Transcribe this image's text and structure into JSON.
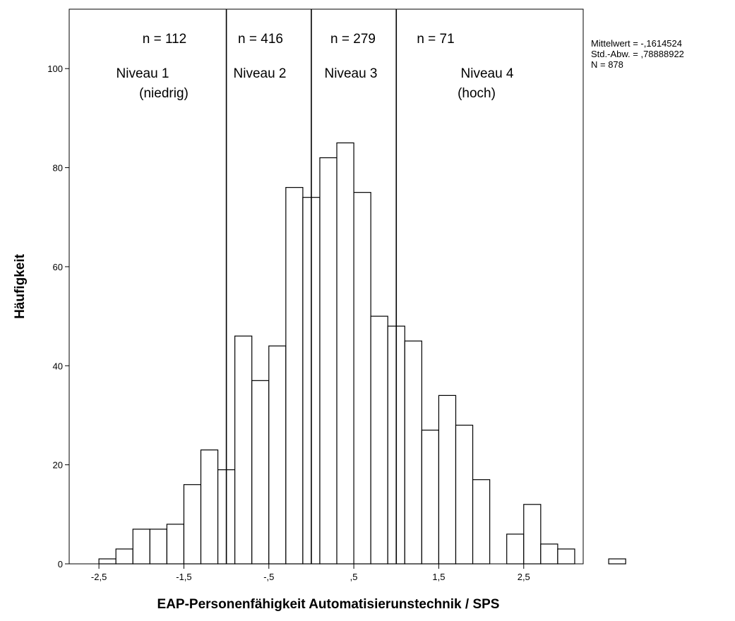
{
  "chart_data": {
    "type": "bar",
    "title": "",
    "xlabel": "EAP-Personenfähigkeit Automatisierunstechnik / SPS",
    "ylabel": "Häufigkeit",
    "bin_width": 0.2,
    "bin_start": -2.5,
    "values": [
      1,
      3,
      7,
      7,
      8,
      16,
      23,
      19,
      46,
      37,
      44,
      76,
      74,
      82,
      85,
      75,
      50,
      48,
      45,
      27,
      34,
      28,
      17,
      0,
      6,
      12,
      4,
      3,
      0,
      0,
      1
    ],
    "xlim": [
      -2.85,
      3.2
    ],
    "ylim": [
      0,
      112
    ],
    "x_ticks": [
      -2.5,
      -1.5,
      -0.5,
      0.5,
      1.5,
      2.5
    ],
    "x_tick_labels": [
      "-2,5",
      "-1,5",
      "-,5",
      ",5",
      "1,5",
      "2,5"
    ],
    "y_ticks": [
      0,
      20,
      40,
      60,
      80,
      100
    ],
    "y_tick_labels": [
      "0",
      "20",
      "40",
      "60",
      "80",
      "100"
    ],
    "grid": false,
    "reference_lines": [
      -1.0,
      0.0,
      1.0
    ],
    "level_annotations": [
      {
        "count": "n = 112",
        "name": "Niveau 1",
        "sub": "(niedrig)"
      },
      {
        "count": "n = 416",
        "name": "Niveau 2",
        "sub": ""
      },
      {
        "count": "n = 279",
        "name": "Niveau 3",
        "sub": ""
      },
      {
        "count": "n = 71",
        "name": "Niveau 4",
        "sub": "(hoch)"
      }
    ],
    "stats": [
      "Mittelwert = -,1614524",
      "Std.-Abw. = ,78888922",
      "N = 878"
    ]
  }
}
